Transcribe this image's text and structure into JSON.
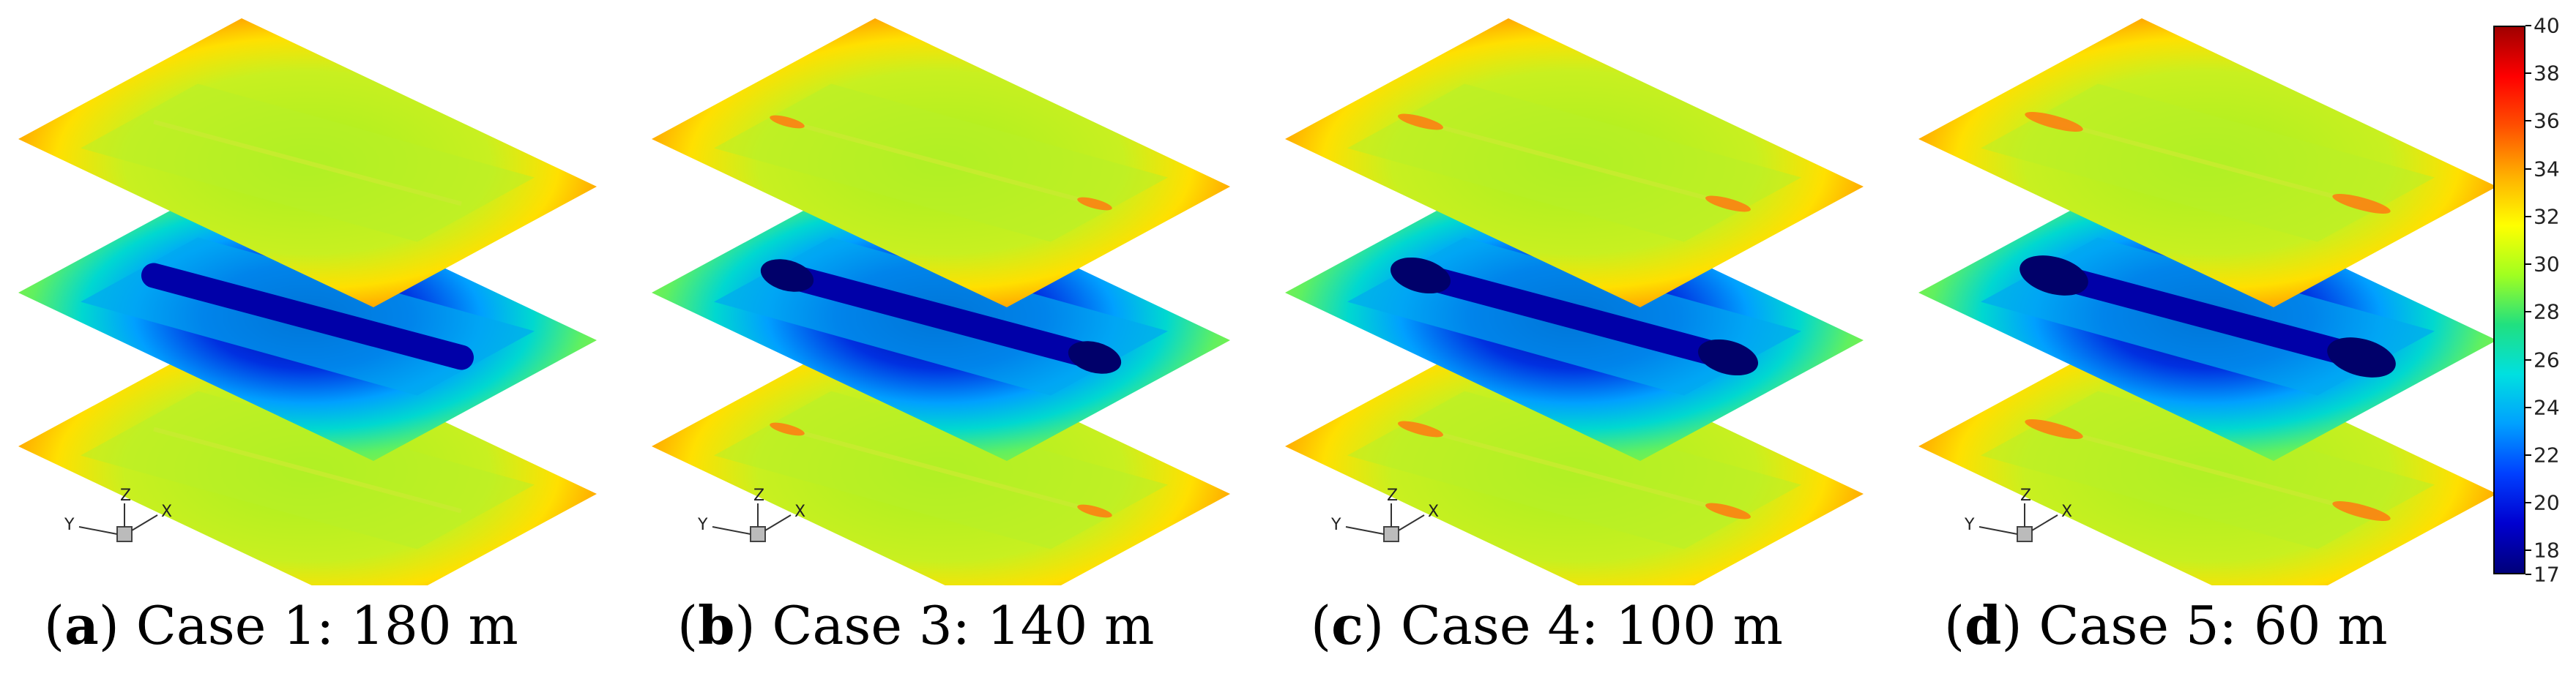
{
  "panels": [
    {
      "letter": "a",
      "rest": ") Case 1: 180 m",
      "hot_fraction": 0.0
    },
    {
      "letter": "b",
      "rest": ") Case 3: 140 m",
      "hot_fraction": 0.35
    },
    {
      "letter": "c",
      "rest": ") Case 4: 100 m",
      "hot_fraction": 0.6
    },
    {
      "letter": "d",
      "rest": ") Case 5: 60 m",
      "hot_fraction": 0.9
    }
  ],
  "axes_triad": {
    "x": "X",
    "y": "Y",
    "z": "Z"
  },
  "colorbar": {
    "min": 17,
    "max": 40,
    "ticks": [
      "40",
      "38",
      "36",
      "34",
      "32",
      "30",
      "28",
      "26",
      "24",
      "22",
      "20",
      "18",
      "17"
    ],
    "tick_values": [
      40,
      38,
      36,
      34,
      32,
      30,
      28,
      26,
      24,
      22,
      20,
      18,
      17
    ],
    "colors": [
      "#00007a",
      "#0000d0",
      "#0040ff",
      "#00a0ff",
      "#00e0e0",
      "#20e080",
      "#a0ff20",
      "#ffff00",
      "#ffb000",
      "#ff5000",
      "#ff0000",
      "#a00000"
    ]
  }
}
